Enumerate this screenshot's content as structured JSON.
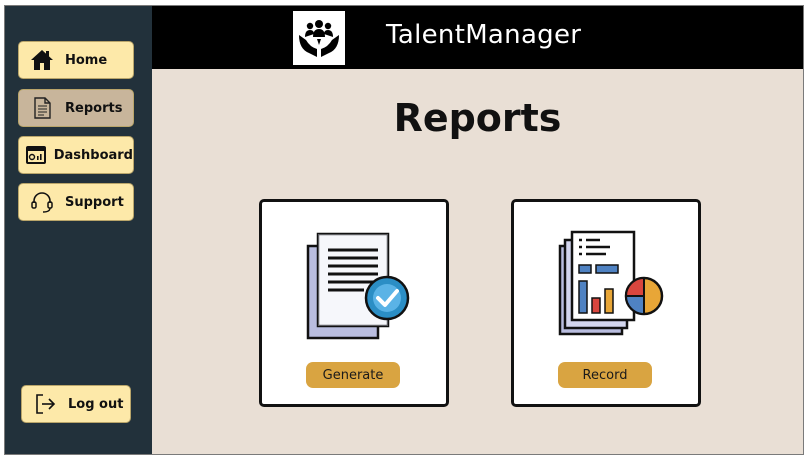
{
  "app": {
    "name": "TalentManager"
  },
  "sidebar": {
    "items": [
      {
        "label": "Home",
        "icon": "home-icon"
      },
      {
        "label": "Reports",
        "icon": "document-icon",
        "active": true
      },
      {
        "label": "Dashboard",
        "icon": "dashboard-icon"
      },
      {
        "label": "Support",
        "icon": "headset-icon"
      }
    ],
    "logout_label": "Log out"
  },
  "page": {
    "title": "Reports"
  },
  "cards": [
    {
      "button_label": "Generate",
      "icon": "document-check-icon"
    },
    {
      "button_label": "Record",
      "icon": "report-chart-icon"
    }
  ],
  "colors": {
    "sidebar_bg": "#22313b",
    "nav_button": "#fde9a9",
    "nav_active": "#c8b59b",
    "header_bg": "#000000",
    "main_bg": "#e9dfd5",
    "card_button": "#d9a441"
  }
}
